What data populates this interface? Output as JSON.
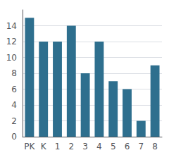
{
  "chart_data": {
    "type": "bar",
    "categories": [
      "PK",
      "K",
      "1",
      "2",
      "3",
      "4",
      "5",
      "6",
      "7",
      "8"
    ],
    "values": [
      15,
      12,
      12,
      14,
      8,
      12,
      7,
      6,
      2,
      9
    ],
    "color": "#2e6f8e",
    "ylim": [
      0,
      16
    ],
    "yticks": [
      0,
      2,
      4,
      6,
      8,
      10,
      12,
      14
    ],
    "grid": true
  }
}
